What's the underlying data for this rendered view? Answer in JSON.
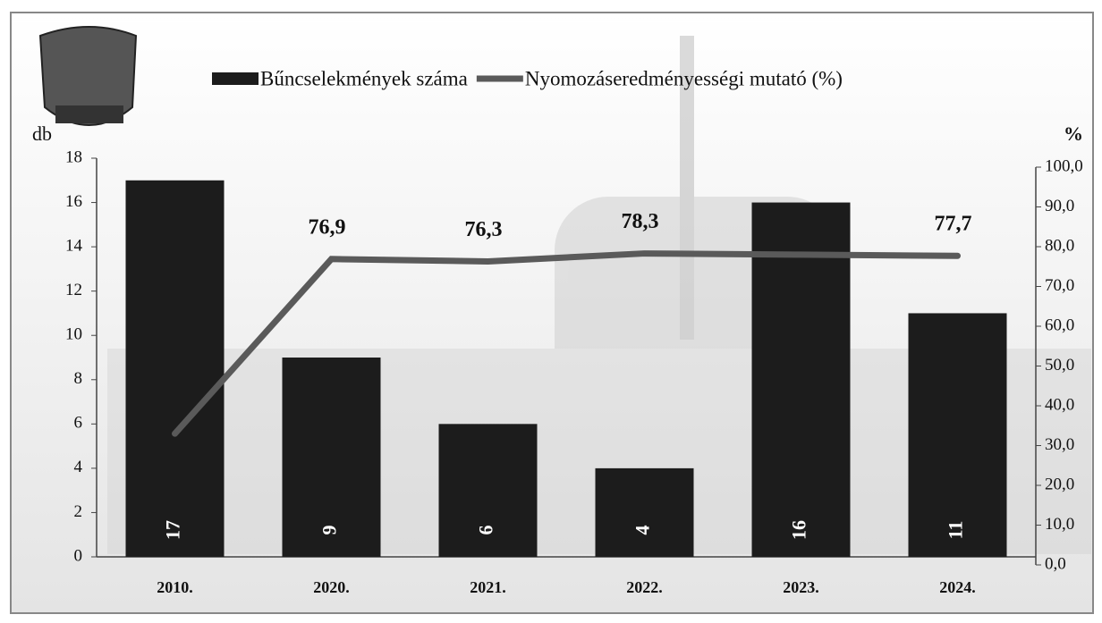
{
  "chart_data": {
    "type": "bar-line",
    "categories": [
      "2010.",
      "2020.",
      "2021.",
      "2022.",
      "2023.",
      "2024."
    ],
    "series": [
      {
        "name": "Bűncselekmények száma",
        "color": "#1c1c1c",
        "type": "bar",
        "values": [
          17,
          9,
          6,
          4,
          16,
          11
        ]
      },
      {
        "name": "Nyomozáseredményességi mutató (%)",
        "color": "#5a5a5a",
        "type": "line",
        "axis": "y2",
        "values": [
          33,
          76.9,
          76.3,
          78.3,
          78,
          77.7
        ],
        "value_labels": [
          null,
          "76,9",
          "76,3",
          "78,3",
          null,
          "77,7"
        ]
      }
    ],
    "ylabel": "db",
    "y2label": "%",
    "ylim": [
      0,
      18
    ],
    "yticks": [
      0,
      2,
      4,
      6,
      8,
      10,
      12,
      14,
      16,
      18
    ],
    "y2lim": [
      0,
      100
    ],
    "y2ticks": [
      {
        "value": 0,
        "label": "0,0"
      },
      {
        "value": 10,
        "label": "10,0"
      },
      {
        "value": 20,
        "label": "20,0"
      },
      {
        "value": 30,
        "label": "30,0"
      },
      {
        "value": 40,
        "label": "40,0"
      },
      {
        "value": 50,
        "label": "50,0"
      },
      {
        "value": 60,
        "label": "60,0"
      },
      {
        "value": 70,
        "label": "70,0"
      },
      {
        "value": 80,
        "label": "80,0"
      },
      {
        "value": 90,
        "label": "90,0"
      },
      {
        "value": 100,
        "label": "100,0"
      }
    ],
    "legend": "top"
  }
}
